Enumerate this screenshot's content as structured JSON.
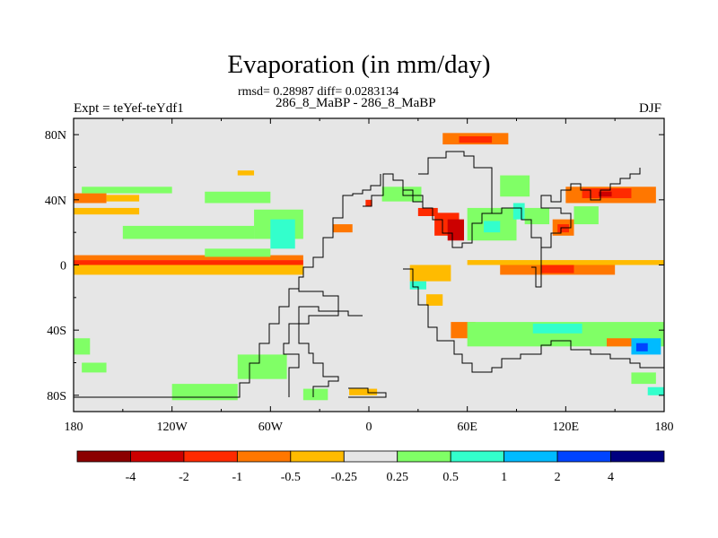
{
  "header": {
    "title": "Evaporation (in mm/day)",
    "stats": "rmsd= 0.28987 diff= 0.0283134",
    "subtitle": "286_8_MaBP - 286_8_MaBP",
    "left_label": "Expt = teYef-teYdf1",
    "right_label": "DJF"
  },
  "chart_data": {
    "type": "heatmap",
    "title": "Evaporation (in mm/day)",
    "subtitle": "286_8_MaBP - 286_8_MaBP",
    "xlabel": "",
    "ylabel": "",
    "xlim": [
      -180,
      180
    ],
    "ylim": [
      -90,
      90
    ],
    "x_ticks": [
      {
        "value": -180,
        "label": "180"
      },
      {
        "value": -120,
        "label": "120W"
      },
      {
        "value": -60,
        "label": "60W"
      },
      {
        "value": 0,
        "label": "0"
      },
      {
        "value": 60,
        "label": "60E"
      },
      {
        "value": 120,
        "label": "120E"
      },
      {
        "value": 180,
        "label": "180"
      }
    ],
    "y_ticks": [
      {
        "value": 80,
        "label": "80N"
      },
      {
        "value": 40,
        "label": "40N"
      },
      {
        "value": 0,
        "label": "0"
      },
      {
        "value": -40,
        "label": "40S"
      },
      {
        "value": -80,
        "label": "80S"
      }
    ],
    "background_color": "#e6e6e6",
    "colorbar": {
      "colors": [
        "#8b0000",
        "#cc0000",
        "#ff2a00",
        "#ff7700",
        "#ffbb00",
        "#e6e6e6",
        "#80ff66",
        "#33ffcc",
        "#00bbff",
        "#0044ff",
        "#000080"
      ],
      "labels": [
        "-4",
        "-2",
        "-1",
        "-0.5",
        "-0.25",
        "0.25",
        "0.5",
        "1",
        "2",
        "4"
      ]
    },
    "anomalies": [
      {
        "lon_min": -180,
        "lon_max": -160,
        "lat_min": 38,
        "lat_max": 44,
        "level": 3
      },
      {
        "lon_min": -160,
        "lon_max": -140,
        "lat_min": 39,
        "lat_max": 43,
        "level": 4
      },
      {
        "lon_min": -180,
        "lon_max": -140,
        "lat_min": 31,
        "lat_max": 35,
        "level": 4
      },
      {
        "lon_min": -175,
        "lon_max": -120,
        "lat_min": 44,
        "lat_max": 48,
        "level": 6
      },
      {
        "lon_min": -100,
        "lon_max": -60,
        "lat_min": 38,
        "lat_max": 45,
        "level": 6
      },
      {
        "lon_min": -150,
        "lon_max": -70,
        "lat_min": 16,
        "lat_max": 24,
        "level": 6
      },
      {
        "lon_min": -70,
        "lon_max": -40,
        "lat_min": 16,
        "lat_max": 34,
        "level": 6
      },
      {
        "lon_min": -60,
        "lon_max": -45,
        "lat_min": 10,
        "lat_max": 28,
        "level": 7
      },
      {
        "lon_min": -180,
        "lon_max": -40,
        "lat_min": 0,
        "lat_max": 3,
        "level": 2
      },
      {
        "lon_min": -180,
        "lon_max": -40,
        "lat_min": 3,
        "lat_max": 6,
        "level": 3
      },
      {
        "lon_min": -180,
        "lon_max": -40,
        "lat_min": -6,
        "lat_max": 0,
        "level": 4
      },
      {
        "lon_min": -100,
        "lon_max": -60,
        "lat_min": 5,
        "lat_max": 10,
        "level": 6
      },
      {
        "lon_min": -80,
        "lon_max": -70,
        "lat_min": 55,
        "lat_max": 58,
        "level": 4
      },
      {
        "lon_min": -180,
        "lon_max": -170,
        "lat_min": -55,
        "lat_max": -45,
        "level": 6
      },
      {
        "lon_min": -175,
        "lon_max": -160,
        "lat_min": -66,
        "lat_max": -60,
        "level": 6
      },
      {
        "lon_min": -120,
        "lon_max": -80,
        "lat_min": -83,
        "lat_max": -73,
        "level": 6
      },
      {
        "lon_min": -80,
        "lon_max": -50,
        "lat_min": -70,
        "lat_max": -55,
        "level": 6
      },
      {
        "lon_min": -40,
        "lon_max": -25,
        "lat_min": -83,
        "lat_max": -76,
        "level": 6
      },
      {
        "lon_min": -12,
        "lon_max": 5,
        "lat_min": -80,
        "lat_max": -76,
        "level": 4
      },
      {
        "lon_min": -22,
        "lon_max": -10,
        "lat_min": 20,
        "lat_max": 25,
        "level": 3
      },
      {
        "lon_min": -2,
        "lon_max": 2,
        "lat_min": 36,
        "lat_max": 40,
        "level": 2
      },
      {
        "lon_min": 8,
        "lon_max": 32,
        "lat_min": 39,
        "lat_max": 48,
        "level": 6
      },
      {
        "lon_min": 45,
        "lon_max": 85,
        "lat_min": 74,
        "lat_max": 81,
        "level": 3
      },
      {
        "lon_min": 55,
        "lon_max": 75,
        "lat_min": 75,
        "lat_max": 79,
        "level": 2
      },
      {
        "lon_min": 30,
        "lon_max": 42,
        "lat_min": 30,
        "lat_max": 35,
        "level": 2
      },
      {
        "lon_min": 40,
        "lon_max": 55,
        "lat_min": 18,
        "lat_max": 32,
        "level": 2
      },
      {
        "lon_min": 48,
        "lon_max": 58,
        "lat_min": 15,
        "lat_max": 28,
        "level": 1
      },
      {
        "lon_min": 60,
        "lon_max": 90,
        "lat_min": 15,
        "lat_max": 35,
        "level": 6
      },
      {
        "lon_min": 70,
        "lon_max": 80,
        "lat_min": 20,
        "lat_max": 27,
        "level": 7
      },
      {
        "lon_min": 80,
        "lon_max": 98,
        "lat_min": 42,
        "lat_max": 55,
        "level": 6
      },
      {
        "lon_min": 88,
        "lon_max": 95,
        "lat_min": 28,
        "lat_max": 38,
        "level": 7
      },
      {
        "lon_min": 95,
        "lon_max": 110,
        "lat_min": 25,
        "lat_max": 35,
        "level": 6
      },
      {
        "lon_min": 120,
        "lon_max": 175,
        "lat_min": 38,
        "lat_max": 48,
        "level": 3
      },
      {
        "lon_min": 130,
        "lon_max": 160,
        "lat_min": 41,
        "lat_max": 47,
        "level": 2
      },
      {
        "lon_min": 140,
        "lon_max": 148,
        "lat_min": 42,
        "lat_max": 45,
        "level": 1
      },
      {
        "lon_min": 112,
        "lon_max": 125,
        "lat_min": 18,
        "lat_max": 28,
        "level": 3
      },
      {
        "lon_min": 115,
        "lon_max": 122,
        "lat_min": 20,
        "lat_max": 25,
        "level": 2
      },
      {
        "lon_min": 125,
        "lon_max": 140,
        "lat_min": 25,
        "lat_max": 36,
        "level": 6
      },
      {
        "lon_min": 60,
        "lon_max": 180,
        "lat_min": 0,
        "lat_max": 3,
        "level": 4
      },
      {
        "lon_min": 80,
        "lon_max": 150,
        "lat_min": -6,
        "lat_max": 0,
        "level": 3
      },
      {
        "lon_min": 105,
        "lon_max": 125,
        "lat_min": -5,
        "lat_max": 0,
        "level": 2
      },
      {
        "lon_min": 25,
        "lon_max": 50,
        "lat_min": -10,
        "lat_max": 0,
        "level": 4
      },
      {
        "lon_min": 25,
        "lon_max": 35,
        "lat_min": -15,
        "lat_max": -10,
        "level": 7
      },
      {
        "lon_min": 35,
        "lon_max": 45,
        "lat_min": -25,
        "lat_max": -18,
        "level": 4
      },
      {
        "lon_min": 50,
        "lon_max": 65,
        "lat_min": -45,
        "lat_max": -35,
        "level": 3
      },
      {
        "lon_min": 60,
        "lon_max": 180,
        "lat_min": -50,
        "lat_max": -35,
        "level": 6
      },
      {
        "lon_min": 100,
        "lon_max": 130,
        "lat_min": -42,
        "lat_max": -36,
        "level": 7
      },
      {
        "lon_min": 160,
        "lon_max": 178,
        "lat_min": -55,
        "lat_max": -45,
        "level": 8
      },
      {
        "lon_min": 163,
        "lon_max": 170,
        "lat_min": -53,
        "lat_max": -48,
        "level": 9
      },
      {
        "lon_min": 145,
        "lon_max": 160,
        "lat_min": -50,
        "lat_max": -45,
        "level": 3
      },
      {
        "lon_min": 160,
        "lon_max": 175,
        "lat_min": -73,
        "lat_max": -66,
        "level": 6
      },
      {
        "lon_min": 170,
        "lon_max": 180,
        "lat_min": -80,
        "lat_max": -75,
        "level": 7
      }
    ]
  }
}
